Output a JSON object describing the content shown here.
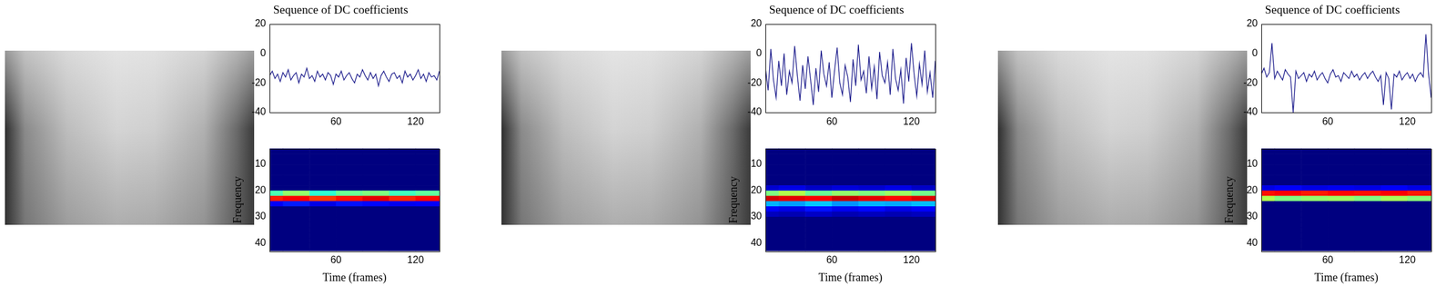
{
  "chart_data": [
    {
      "type": "line",
      "title": "Sequence of DC coefficients",
      "color": "#1c1c8c",
      "grid": false,
      "x": [
        10,
        12,
        14,
        16,
        18,
        20,
        22,
        24,
        26,
        28,
        30,
        32,
        34,
        36,
        38,
        40,
        42,
        44,
        46,
        48,
        50,
        52,
        54,
        56,
        58,
        60,
        62,
        64,
        66,
        68,
        70,
        72,
        74,
        76,
        78,
        80,
        82,
        84,
        86,
        88,
        90,
        92,
        94,
        96,
        98,
        100,
        102,
        104,
        106,
        108,
        110,
        112,
        114,
        116,
        118,
        120,
        122,
        124,
        126,
        128,
        130,
        132,
        134,
        136,
        138
      ],
      "values": [
        -15,
        -12,
        -17,
        -14,
        -19,
        -13,
        -16,
        -11,
        -18,
        -15,
        -13,
        -20,
        -14,
        -16,
        -10,
        -17,
        -15,
        -19,
        -12,
        -16,
        -14,
        -18,
        -13,
        -15,
        -21,
        -14,
        -16,
        -12,
        -18,
        -15,
        -13,
        -17,
        -20,
        -14,
        -16,
        -11,
        -15,
        -18,
        -13,
        -17,
        -14,
        -22,
        -15,
        -12,
        -16,
        -19,
        -14,
        -13,
        -17,
        -15,
        -20,
        -12,
        -16,
        -14,
        -18,
        -15,
        -11,
        -17,
        -14,
        -19,
        -13,
        -16,
        -15,
        -18,
        -12
      ],
      "xlim": [
        10,
        138
      ],
      "xticks": [
        60,
        120
      ],
      "ylim": [
        -40,
        20
      ],
      "yticks": [
        -40,
        -20,
        0,
        20
      ]
    },
    {
      "type": "heatmap",
      "x_label": "Time (frames)",
      "y_label": "Frequency",
      "grid": false,
      "x": [
        10,
        30,
        50,
        70,
        90,
        110,
        130
      ],
      "y": [
        1,
        3,
        5,
        7,
        9,
        11,
        13,
        15,
        17,
        19,
        21,
        23,
        25,
        27,
        29,
        31,
        33,
        35,
        37,
        39,
        41,
        43
      ],
      "z": [
        [
          0,
          0,
          0,
          0,
          0,
          0,
          0
        ],
        [
          0,
          0,
          0,
          0,
          0,
          0,
          0
        ],
        [
          0,
          0,
          0,
          0,
          0,
          0,
          0
        ],
        [
          0,
          0,
          0,
          0,
          0,
          0,
          0
        ],
        [
          0,
          0,
          0,
          0,
          0,
          0,
          0
        ],
        [
          0,
          0,
          0,
          0,
          0,
          0,
          0
        ],
        [
          0,
          0,
          0,
          0,
          0,
          0,
          0
        ],
        [
          0,
          0,
          0,
          0,
          0,
          0,
          0
        ],
        [
          0,
          0,
          0,
          0,
          0,
          0,
          0
        ],
        [
          0,
          0,
          0,
          0,
          0,
          0,
          0
        ],
        [
          0.45,
          0.52,
          0.42,
          0.48,
          0.5,
          0.44,
          0.47
        ],
        [
          0.85,
          0.88,
          0.82,
          0.86,
          0.9,
          0.84,
          0.87
        ],
        [
          0.12,
          0.15,
          0.1,
          0.14,
          0.13,
          0.11,
          0.12
        ],
        [
          0,
          0,
          0,
          0,
          0,
          0,
          0
        ],
        [
          0,
          0,
          0,
          0,
          0,
          0,
          0
        ],
        [
          0,
          0,
          0,
          0,
          0,
          0,
          0
        ],
        [
          0,
          0,
          0,
          0,
          0,
          0,
          0
        ],
        [
          0,
          0,
          0,
          0,
          0,
          0,
          0
        ],
        [
          0,
          0,
          0,
          0,
          0,
          0,
          0
        ],
        [
          0,
          0,
          0,
          0,
          0,
          0,
          0
        ],
        [
          0,
          0,
          0,
          0,
          0,
          0,
          0
        ],
        [
          0,
          0,
          0,
          0,
          0,
          0,
          0
        ]
      ],
      "zlim": [
        0,
        1
      ],
      "xlim": [
        10,
        138
      ],
      "xticks": [
        60,
        120
      ],
      "ylim": [
        43,
        4
      ],
      "yticks": [
        10,
        20,
        30,
        40
      ]
    },
    {
      "type": "line",
      "title": "Sequence of DC coefficients",
      "color": "#1c1c8c",
      "grid": false,
      "x": [
        10,
        12,
        14,
        16,
        18,
        20,
        22,
        24,
        26,
        28,
        30,
        32,
        34,
        36,
        38,
        40,
        42,
        44,
        46,
        48,
        50,
        52,
        54,
        56,
        58,
        60,
        62,
        64,
        66,
        68,
        70,
        72,
        74,
        76,
        78,
        80,
        82,
        84,
        86,
        88,
        90,
        92,
        94,
        96,
        98,
        100,
        102,
        104,
        106,
        108,
        110,
        112,
        114,
        116,
        118,
        120,
        122,
        124,
        126,
        128,
        130,
        132,
        134,
        136,
        138
      ],
      "values": [
        -10,
        -25,
        3,
        -18,
        -30,
        -5,
        -22,
        0,
        -28,
        -12,
        -20,
        5,
        -15,
        -32,
        -8,
        -24,
        -2,
        -18,
        -35,
        -10,
        -26,
        2,
        -14,
        -22,
        -6,
        -30,
        -12,
        4,
        -20,
        -28,
        -8,
        -16,
        -33,
        -4,
        -22,
        6,
        -18,
        -12,
        -27,
        -2,
        -24,
        -9,
        -31,
        1,
        -15,
        -20,
        -6,
        -28,
        3,
        -17,
        -25,
        -11,
        -34,
        -3,
        -19,
        7,
        -14,
        -29,
        -7,
        -21,
        2,
        -26,
        -13,
        -30,
        -5
      ],
      "xlim": [
        10,
        138
      ],
      "xticks": [
        60,
        120
      ],
      "ylim": [
        -40,
        20
      ],
      "yticks": [
        -40,
        -20,
        0,
        20
      ]
    },
    {
      "type": "heatmap",
      "x_label": "Time (frames)",
      "y_label": "Frequency",
      "grid": false,
      "x": [
        10,
        30,
        50,
        70,
        90,
        110,
        130
      ],
      "y": [
        1,
        3,
        5,
        7,
        9,
        11,
        13,
        15,
        17,
        19,
        21,
        23,
        25,
        27,
        29,
        31,
        33,
        35,
        37,
        39,
        41,
        43
      ],
      "z": [
        [
          0,
          0,
          0,
          0,
          0,
          0,
          0
        ],
        [
          0,
          0,
          0,
          0,
          0,
          0,
          0
        ],
        [
          0,
          0,
          0,
          0,
          0,
          0,
          0
        ],
        [
          0,
          0,
          0,
          0,
          0,
          0,
          0
        ],
        [
          0,
          0,
          0,
          0,
          0,
          0,
          0
        ],
        [
          0,
          0,
          0,
          0,
          0,
          0,
          0
        ],
        [
          0,
          0,
          0,
          0,
          0,
          0,
          0
        ],
        [
          0,
          0,
          0,
          0,
          0,
          0,
          0
        ],
        [
          0,
          0,
          0,
          0,
          0,
          0,
          0
        ],
        [
          0.08,
          0.1,
          0.07,
          0.09,
          0.08,
          0.1,
          0.07
        ],
        [
          0.5,
          0.55,
          0.48,
          0.52,
          0.5,
          0.53,
          0.49
        ],
        [
          0.92,
          0.9,
          0.88,
          0.93,
          0.9,
          0.87,
          0.91
        ],
        [
          0.3,
          0.28,
          0.32,
          0.27,
          0.3,
          0.29,
          0.31
        ],
        [
          0.12,
          0.1,
          0.14,
          0.11,
          0.13,
          0.1,
          0.12
        ],
        [
          0.06,
          0.05,
          0.07,
          0.05,
          0.06,
          0.05,
          0.06
        ],
        [
          0,
          0,
          0,
          0,
          0,
          0,
          0
        ],
        [
          0,
          0,
          0,
          0,
          0,
          0,
          0
        ],
        [
          0,
          0,
          0,
          0,
          0,
          0,
          0
        ],
        [
          0,
          0,
          0,
          0,
          0,
          0,
          0
        ],
        [
          0,
          0,
          0,
          0,
          0,
          0,
          0
        ],
        [
          0,
          0,
          0,
          0,
          0,
          0,
          0
        ],
        [
          0,
          0,
          0,
          0,
          0,
          0,
          0
        ]
      ],
      "zlim": [
        0,
        1
      ],
      "xlim": [
        10,
        138
      ],
      "xticks": [
        60,
        120
      ],
      "ylim": [
        43,
        4
      ],
      "yticks": [
        10,
        20,
        30,
        40
      ]
    },
    {
      "type": "line",
      "title": "Sequence of DC coefficients",
      "color": "#1c1c8c",
      "grid": false,
      "x": [
        10,
        12,
        14,
        16,
        18,
        20,
        22,
        24,
        26,
        28,
        30,
        32,
        34,
        36,
        38,
        40,
        42,
        44,
        46,
        48,
        50,
        52,
        54,
        56,
        58,
        60,
        62,
        64,
        66,
        68,
        70,
        72,
        74,
        76,
        78,
        80,
        82,
        84,
        86,
        88,
        90,
        92,
        94,
        96,
        98,
        100,
        102,
        104,
        106,
        108,
        110,
        112,
        114,
        116,
        118,
        120,
        122,
        124,
        126,
        128,
        130,
        132,
        134,
        136,
        138
      ],
      "values": [
        -14,
        -10,
        -16,
        -13,
        7,
        -17,
        -12,
        -15,
        -18,
        -11,
        -14,
        -16,
        -40,
        -12,
        -17,
        -15,
        -13,
        -19,
        -14,
        -16,
        -12,
        -18,
        -15,
        -13,
        -17,
        -20,
        -14,
        -11,
        -16,
        -15,
        -19,
        -13,
        -15,
        -17,
        -12,
        -16,
        -14,
        -18,
        -15,
        -13,
        -17,
        -14,
        -12,
        -16,
        -19,
        -15,
        -35,
        -13,
        -17,
        -38,
        -14,
        -16,
        -12,
        -18,
        -15,
        -13,
        -17,
        -14,
        -19,
        -15,
        -13,
        -16,
        13,
        -14,
        -30
      ],
      "xlim": [
        10,
        138
      ],
      "xticks": [
        60,
        120
      ],
      "ylim": [
        -40,
        20
      ],
      "yticks": [
        -40,
        -20,
        0,
        20
      ]
    },
    {
      "type": "heatmap",
      "x_label": "Time (frames)",
      "y_label": "Frequency",
      "grid": false,
      "x": [
        10,
        30,
        50,
        70,
        90,
        110,
        130
      ],
      "y": [
        1,
        3,
        5,
        7,
        9,
        11,
        13,
        15,
        17,
        19,
        21,
        23,
        25,
        27,
        29,
        31,
        33,
        35,
        37,
        39,
        41,
        43
      ],
      "z": [
        [
          0,
          0,
          0,
          0,
          0,
          0,
          0
        ],
        [
          0,
          0,
          0,
          0,
          0,
          0,
          0
        ],
        [
          0,
          0,
          0,
          0,
          0,
          0,
          0
        ],
        [
          0,
          0,
          0,
          0,
          0,
          0,
          0
        ],
        [
          0,
          0,
          0,
          0,
          0,
          0,
          0
        ],
        [
          0,
          0,
          0,
          0,
          0,
          0,
          0
        ],
        [
          0,
          0,
          0,
          0,
          0,
          0,
          0
        ],
        [
          0,
          0,
          0,
          0,
          0,
          0,
          0
        ],
        [
          0,
          0,
          0,
          0,
          0,
          0,
          0
        ],
        [
          0.1,
          0.12,
          0.1,
          0.11,
          0.1,
          0.12,
          0.1
        ],
        [
          0.86,
          0.88,
          0.85,
          0.87,
          0.86,
          0.88,
          0.85
        ],
        [
          0.55,
          0.5,
          0.52,
          0.53,
          0.5,
          0.54,
          0.51
        ],
        [
          0,
          0,
          0,
          0,
          0,
          0,
          0
        ],
        [
          0,
          0,
          0,
          0,
          0,
          0,
          0
        ],
        [
          0,
          0,
          0,
          0,
          0,
          0,
          0
        ],
        [
          0,
          0,
          0,
          0,
          0,
          0,
          0
        ],
        [
          0,
          0,
          0,
          0,
          0,
          0,
          0
        ],
        [
          0,
          0,
          0,
          0,
          0,
          0,
          0
        ],
        [
          0,
          0,
          0,
          0,
          0,
          0,
          0
        ],
        [
          0,
          0,
          0,
          0,
          0,
          0,
          0
        ],
        [
          0,
          0,
          0,
          0,
          0,
          0,
          0
        ],
        [
          0,
          0,
          0,
          0,
          0,
          0,
          0
        ]
      ],
      "zlim": [
        0,
        1
      ],
      "xlim": [
        10,
        138
      ],
      "xticks": [
        60,
        120
      ],
      "ylim": [
        43,
        4
      ],
      "yticks": [
        10,
        20,
        30,
        40
      ]
    }
  ]
}
